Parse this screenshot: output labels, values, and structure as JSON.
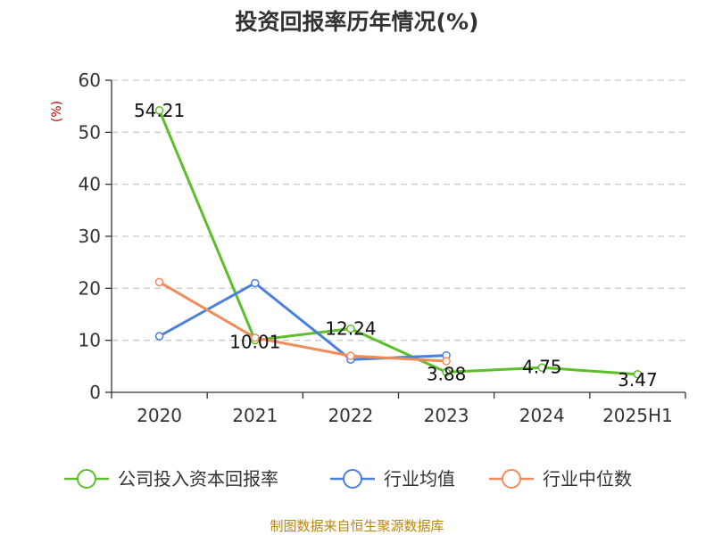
{
  "chart_data": {
    "type": "line",
    "title": "投资回报率历年情况(%)",
    "ylabel": "(%)",
    "categories": [
      "2020",
      "2021",
      "2022",
      "2023",
      "2024",
      "2025H1"
    ],
    "ylim": [
      0,
      60
    ],
    "yticks": [
      0,
      10,
      20,
      30,
      40,
      50,
      60
    ],
    "grid": true,
    "legend_position": "bottom",
    "series": [
      {
        "name": "公司投入资本回报率",
        "color": "#5cbf2a",
        "values": [
          54.21,
          10.01,
          12.24,
          3.88,
          4.75,
          3.47
        ],
        "labels": [
          "54.21",
          "10.01",
          "12.24",
          "3.88",
          "4.75",
          "3.47"
        ]
      },
      {
        "name": "行业均值",
        "color": "#4a7fdc",
        "values": [
          10.8,
          21.0,
          6.3,
          7.1,
          null,
          null
        ]
      },
      {
        "name": "行业中位数",
        "color": "#f08c5a",
        "values": [
          21.2,
          10.5,
          7.0,
          6.0,
          null,
          null
        ]
      }
    ],
    "source": "制图数据来自恒生聚源数据库"
  }
}
